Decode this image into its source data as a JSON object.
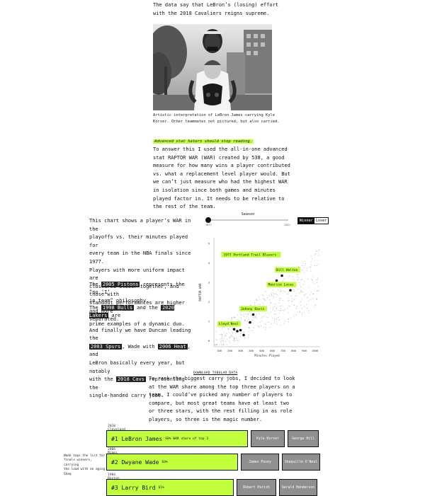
{
  "intro": {
    "line": "The data say that LeBron’s (losing) effort\nwith the 2018 Cavaliers reigns supreme."
  },
  "photo": {
    "caption": "Artistic interpretation of LeBron James carrying Kyle\nKorver. Other teammates not pictured, but also carried."
  },
  "highlight_note": "Advanced stat haters should stop reading.",
  "paragraph_raptor": "To answer this I used the all-in-one advanced\nstat RAPTOR WAR (WAR) created by 538, a good\nmeasure for how many wins a player contributed\nvs. what a replacement level player would. But\nwe can’t just measure who had the highest WAR\nin isolation since both games and minutes\nplayed factor in. It needs to be relative to\nthe rest of the team.",
  "side_text": {
    "p1": "This chart shows a player’s WAR in the\nplayoffs vs. their minutes played for\nevery team in the NBA finals since 1977.\nPlayers with more uniform impact are\nclustered closer together, and those with\nstandout performances are higher and more\nseparated.",
    "p2_chip": "2005 Pistons",
    "p2_pre": "The ",
    "p2_post": " represents the “no ‘I’\nin team” philosophy.",
    "p3_pre": "The ",
    "p3_chip1": "1998 Bulls",
    "p3_mid": " and the ",
    "p3_chip2": "2020 Lakers",
    "p3_post": " are\nprime examples of a dynamic duo.",
    "p4_a": "And finally we have Duncan leading the\n",
    "p4_chip1": "2003 Spurs",
    "p4_b": ", Wade with ",
    "p4_chip2": "2006 Heat",
    "p4_c": ", and\nLeBron basically every year, but notably\nwith the ",
    "p4_chip3": "2018 Cavs",
    "p4_d": " representing the\nsingle-handed carry jobs."
  },
  "season_control": {
    "label": "Season",
    "min_label": "1977",
    "max_label": "2021",
    "toggle_winner": "Winner",
    "toggle_loser": "Loser",
    "value": 0
  },
  "chart_data": {
    "type": "scatter",
    "xlabel": "Minutes Played",
    "ylabel": "RAPTOR WAR",
    "xlim": [
      50,
      1050
    ],
    "ylim": [
      -0.3,
      5.3
    ],
    "x_ticks": [
      100,
      200,
      300,
      400,
      500,
      600,
      700,
      800,
      900,
      1000
    ],
    "y_ticks": [
      0,
      1,
      2,
      3,
      4,
      5
    ],
    "labeled_points": [
      {
        "name": "1977 Portland Trail Blazers",
        "x": 160,
        "y": 4.4,
        "label": "1977 Portland Trail Blazers"
      },
      {
        "name": "Bill Walton",
        "x": 690,
        "y": 3.35,
        "label": "Bill Walton"
      },
      {
        "name": "Maurice Lucas",
        "x": 640,
        "y": 3.1,
        "label": "Maurice Lucas"
      },
      {
        "name": "Johnny Davis",
        "x": 420,
        "y": 1.35,
        "label": "Johnny Davis"
      },
      {
        "name": "Lloyd Neal",
        "x": 270,
        "y": 0.5,
        "label": "Lloyd Neal"
      }
    ],
    "team_points": [
      {
        "x": 690,
        "y": 3.35
      },
      {
        "x": 640,
        "y": 3.1
      },
      {
        "x": 770,
        "y": 2.6
      },
      {
        "x": 420,
        "y": 1.35
      },
      {
        "x": 390,
        "y": 0.95
      },
      {
        "x": 300,
        "y": 0.55
      },
      {
        "x": 270,
        "y": 0.5
      },
      {
        "x": 240,
        "y": 0.6
      },
      {
        "x": 330,
        "y": 0.3
      }
    ]
  },
  "download_link": "DOWNLOAD TABULAR DATA",
  "paragraph_rank": "To rank the biggest carry jobs, I decided to look\nat the WAR share among the top three players on a\nteam. I could’ve picked any number of players to\ncompare, but most great teams have at least two\nor three stars, with the rest filling in as role\nplayers, so three is the magic number.",
  "carry_jobs": [
    {
      "team": "2018 Cleveland Cavaliers",
      "trophy": "",
      "rank": "#1",
      "player": "LeBron James",
      "share": "60% WAR share of top 3",
      "others": [
        "Kyle Korver",
        "George Hill"
      ]
    },
    {
      "team": "2006 Miami Heat",
      "trophy": "🏆",
      "rank": "#2",
      "player": "Dwyane Wade",
      "share": "64%",
      "others": [
        "James Posey",
        "Shaquille O'Neal"
      ]
    },
    {
      "team": "1984 Boston Celtics",
      "trophy": "🏆",
      "rank": "#3",
      "player": "Larry Bird",
      "share": "61%",
      "others": [
        "Robert Parish",
        "Gerald Henderson"
      ]
    }
  ],
  "side_note": "Wade tops the list for\nfinals winners, carrying\nthe load with an aging\nShaq",
  "colors": {
    "accent": "#c1ff3d",
    "chip": "#222222",
    "gray_bar": "#8f8f8f"
  }
}
